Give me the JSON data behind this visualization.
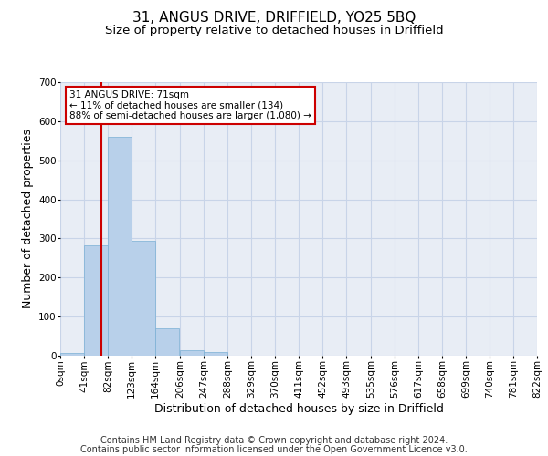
{
  "title1": "31, ANGUS DRIVE, DRIFFIELD, YO25 5BQ",
  "title2": "Size of property relative to detached houses in Driffield",
  "xlabel": "Distribution of detached houses by size in Driffield",
  "ylabel": "Number of detached properties",
  "bin_edges": [
    0,
    41,
    82,
    123,
    164,
    206,
    247,
    288,
    329,
    370,
    411,
    452,
    493,
    535,
    576,
    617,
    658,
    699,
    740,
    781,
    822
  ],
  "bin_labels": [
    "0sqm",
    "41sqm",
    "82sqm",
    "123sqm",
    "164sqm",
    "206sqm",
    "247sqm",
    "288sqm",
    "329sqm",
    "370sqm",
    "411sqm",
    "452sqm",
    "493sqm",
    "535sqm",
    "576sqm",
    "617sqm",
    "658sqm",
    "699sqm",
    "740sqm",
    "781sqm",
    "822sqm"
  ],
  "counts": [
    7,
    283,
    560,
    293,
    70,
    15,
    10,
    0,
    0,
    0,
    0,
    0,
    0,
    0,
    0,
    0,
    0,
    0,
    0,
    0
  ],
  "bar_color": "#b8d0ea",
  "bar_edge_color": "#7aafd4",
  "property_size": 71,
  "vline_color": "#cc0000",
  "annotation_line1": "31 ANGUS DRIVE: 71sqm",
  "annotation_line2": "← 11% of detached houses are smaller (134)",
  "annotation_line3": "88% of semi-detached houses are larger (1,080) →",
  "annotation_box_color": "#ffffff",
  "annotation_box_edge": "#cc0000",
  "ylim": [
    0,
    700
  ],
  "yticks": [
    0,
    100,
    200,
    300,
    400,
    500,
    600,
    700
  ],
  "grid_color": "#c8d4e8",
  "bg_color": "#e8edf5",
  "footer_line1": "Contains HM Land Registry data © Crown copyright and database right 2024.",
  "footer_line2": "Contains public sector information licensed under the Open Government Licence v3.0.",
  "title1_fontsize": 11,
  "title2_fontsize": 9.5,
  "xlabel_fontsize": 9,
  "ylabel_fontsize": 9,
  "footer_fontsize": 7,
  "tick_fontsize": 7.5,
  "annot_fontsize": 7.5
}
